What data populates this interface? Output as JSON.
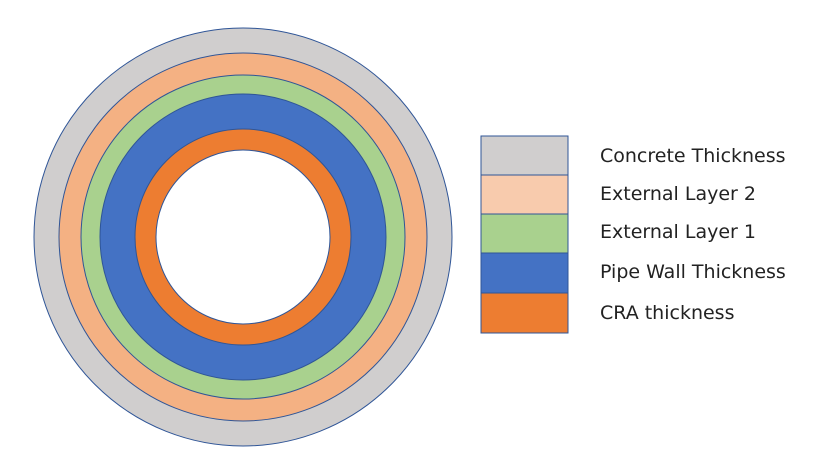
{
  "layers": [
    {
      "name": "Concrete Thickness",
      "color": "#d0cece"
    },
    {
      "name": "External Layer 2",
      "color": "#f4b183"
    },
    {
      "name": "External Layer 1",
      "color": "#a9d18e"
    },
    {
      "name": "Pipe Wall Thickness",
      "color": "#4472c4"
    },
    {
      "name": "CRA thickness",
      "color": "#ed7d31"
    }
  ],
  "legend": {
    "items": [
      {
        "label": "Concrete Thickness",
        "color": "#d0cece"
      },
      {
        "label": "External Layer 2",
        "color": "#f8cbad"
      },
      {
        "label": "External Layer 1",
        "color": "#a9d18e"
      },
      {
        "label": "Pipe Wall Thickness",
        "color": "#4472c4"
      },
      {
        "label": "CRA thickness",
        "color": "#ed7d31"
      }
    ]
  },
  "outline_color": "#2f5597",
  "bore_color": "#ffffff"
}
